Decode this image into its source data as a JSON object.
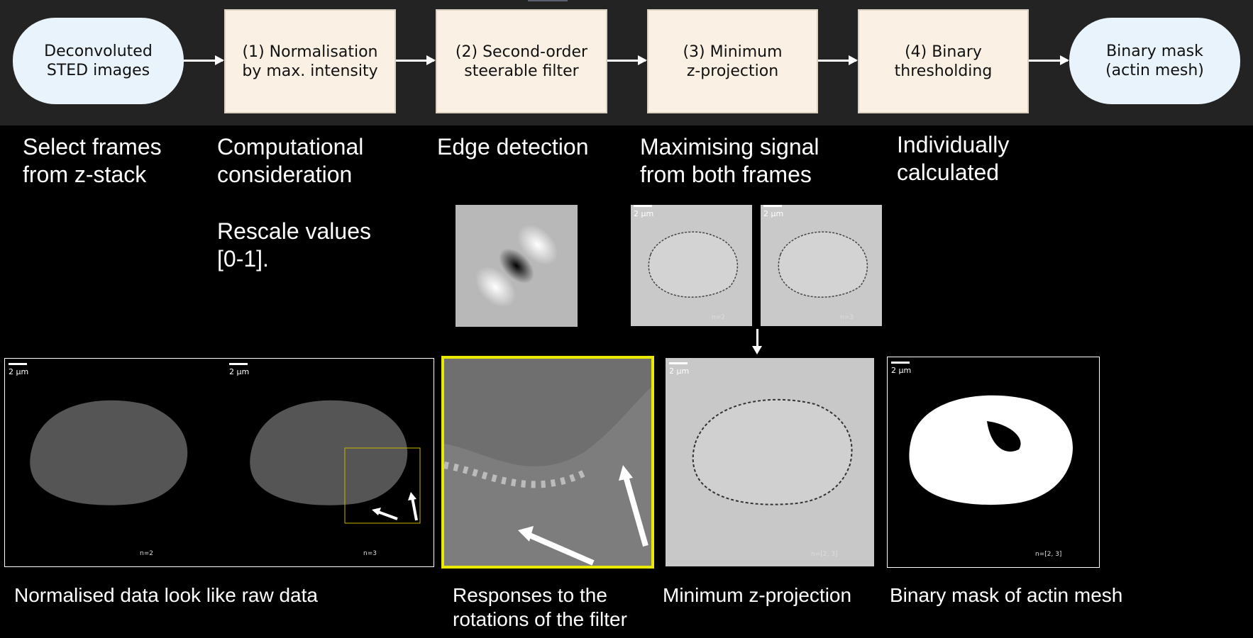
{
  "flowchart": {
    "nodes": [
      {
        "id": "input",
        "label": "Deconvoluted\nSTED images",
        "shape": "terminal"
      },
      {
        "id": "step1",
        "label": "(1) Normalisation\nby max. intensity",
        "shape": "process"
      },
      {
        "id": "step2",
        "label": "(2) Second-order\nsteerable filter",
        "shape": "process"
      },
      {
        "id": "step3",
        "label": "(3) Minimum\nz-projection",
        "shape": "process"
      },
      {
        "id": "step4",
        "label": "(4) Binary\nthresholding",
        "shape": "process"
      },
      {
        "id": "output",
        "label": "Binary mask\n(actin mesh)",
        "shape": "terminal"
      }
    ],
    "colors": {
      "terminal": "#e9f3fb",
      "process": "#faf0e4",
      "band": "#232323",
      "highlight": "#e8e800"
    }
  },
  "notes": {
    "select": "Select frames\nfrom z-stack",
    "computational": "Computational\nconsideration",
    "rescale": "Rescale values\n[0-1].",
    "edge": "Edge detection",
    "maximising": "Maximising signal\nfrom both frames",
    "individually": "Individually\ncalculated"
  },
  "captions": {
    "normalised": "Normalised data look like raw data",
    "responses": "Responses to the\nrotations of the filter",
    "minimum": "Minimum z-projection",
    "binary": "Binary mask of actin mesh"
  },
  "images": {
    "scalebar": "2 µm",
    "frame_a": "n=2",
    "frame_b": "n=3",
    "projection": "n=[2, 3]"
  }
}
